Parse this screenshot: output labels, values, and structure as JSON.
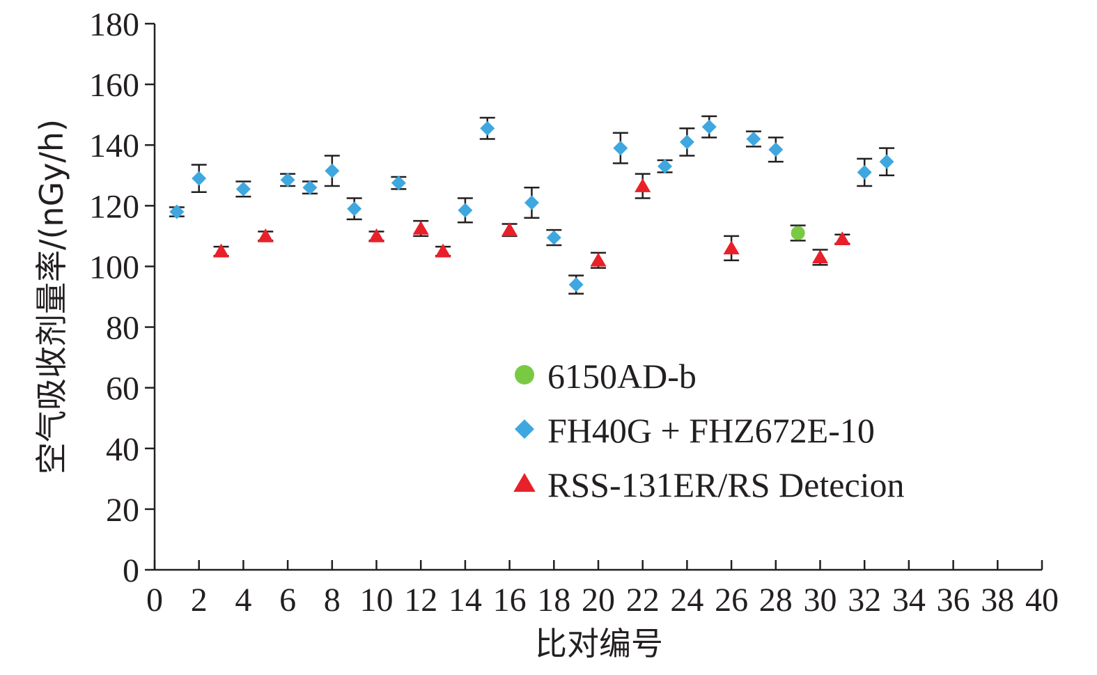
{
  "chart_data": {
    "type": "scatter",
    "xlabel": "比对编号",
    "ylabel": "空气吸收剂量率/(nGy/h)",
    "xlim": [
      0,
      40
    ],
    "ylim": [
      0,
      180
    ],
    "x_ticks": [
      "0",
      "2",
      "4",
      "6",
      "8",
      "10",
      "12",
      "14",
      "16",
      "18",
      "20",
      "22",
      "24",
      "26",
      "28",
      "30",
      "32",
      "34",
      "36",
      "38",
      "40"
    ],
    "y_ticks": [
      "0",
      "20",
      "40",
      "60",
      "80",
      "100",
      "120",
      "140",
      "160",
      "180"
    ],
    "grid": false,
    "legend_position": "center-right",
    "series": [
      {
        "name": "6150AD-b",
        "marker": "circle",
        "color": "#7ac943",
        "points": [
          {
            "x": 29,
            "y": 111,
            "err": 2.5
          }
        ]
      },
      {
        "name": "FH40G + FHZ672E-10",
        "marker": "diamond",
        "color": "#3fa7df",
        "points": [
          {
            "x": 1,
            "y": 118,
            "err": 1.5
          },
          {
            "x": 2,
            "y": 129,
            "err": 4.5
          },
          {
            "x": 4,
            "y": 125.5,
            "err": 2.5
          },
          {
            "x": 6,
            "y": 128.5,
            "err": 2
          },
          {
            "x": 7,
            "y": 126,
            "err": 2
          },
          {
            "x": 8,
            "y": 131.5,
            "err": 5
          },
          {
            "x": 9,
            "y": 119,
            "err": 3.5
          },
          {
            "x": 11,
            "y": 127.5,
            "err": 2
          },
          {
            "x": 14,
            "y": 118.5,
            "err": 4
          },
          {
            "x": 15,
            "y": 145.5,
            "err": 3.5
          },
          {
            "x": 17,
            "y": 121,
            "err": 5
          },
          {
            "x": 18,
            "y": 109.5,
            "err": 2.5
          },
          {
            "x": 19,
            "y": 94,
            "err": 3
          },
          {
            "x": 21,
            "y": 139,
            "err": 5
          },
          {
            "x": 23,
            "y": 133,
            "err": 2
          },
          {
            "x": 24,
            "y": 141,
            "err": 4.5
          },
          {
            "x": 25,
            "y": 146,
            "err": 3.5
          },
          {
            "x": 27,
            "y": 142,
            "err": 2.5
          },
          {
            "x": 28,
            "y": 138.5,
            "err": 4
          },
          {
            "x": 32,
            "y": 131,
            "err": 4.5
          },
          {
            "x": 33,
            "y": 134.5,
            "err": 4.5
          }
        ]
      },
      {
        "name": "RSS-131ER/RS Detecion",
        "marker": "triangle",
        "color": "#e8202a",
        "points": [
          {
            "x": 3,
            "y": 105,
            "err": 1.5
          },
          {
            "x": 5,
            "y": 110,
            "err": 1.5
          },
          {
            "x": 10,
            "y": 110,
            "err": 1.5
          },
          {
            "x": 12,
            "y": 112.5,
            "err": 2.5
          },
          {
            "x": 13,
            "y": 105,
            "err": 1.5
          },
          {
            "x": 16,
            "y": 112,
            "err": 2
          },
          {
            "x": 20,
            "y": 102,
            "err": 2.5
          },
          {
            "x": 22,
            "y": 126.5,
            "err": 4
          },
          {
            "x": 26,
            "y": 106,
            "err": 4
          },
          {
            "x": 30,
            "y": 103,
            "err": 2.5
          },
          {
            "x": 31,
            "y": 109,
            "err": 1.5
          }
        ]
      }
    ]
  }
}
